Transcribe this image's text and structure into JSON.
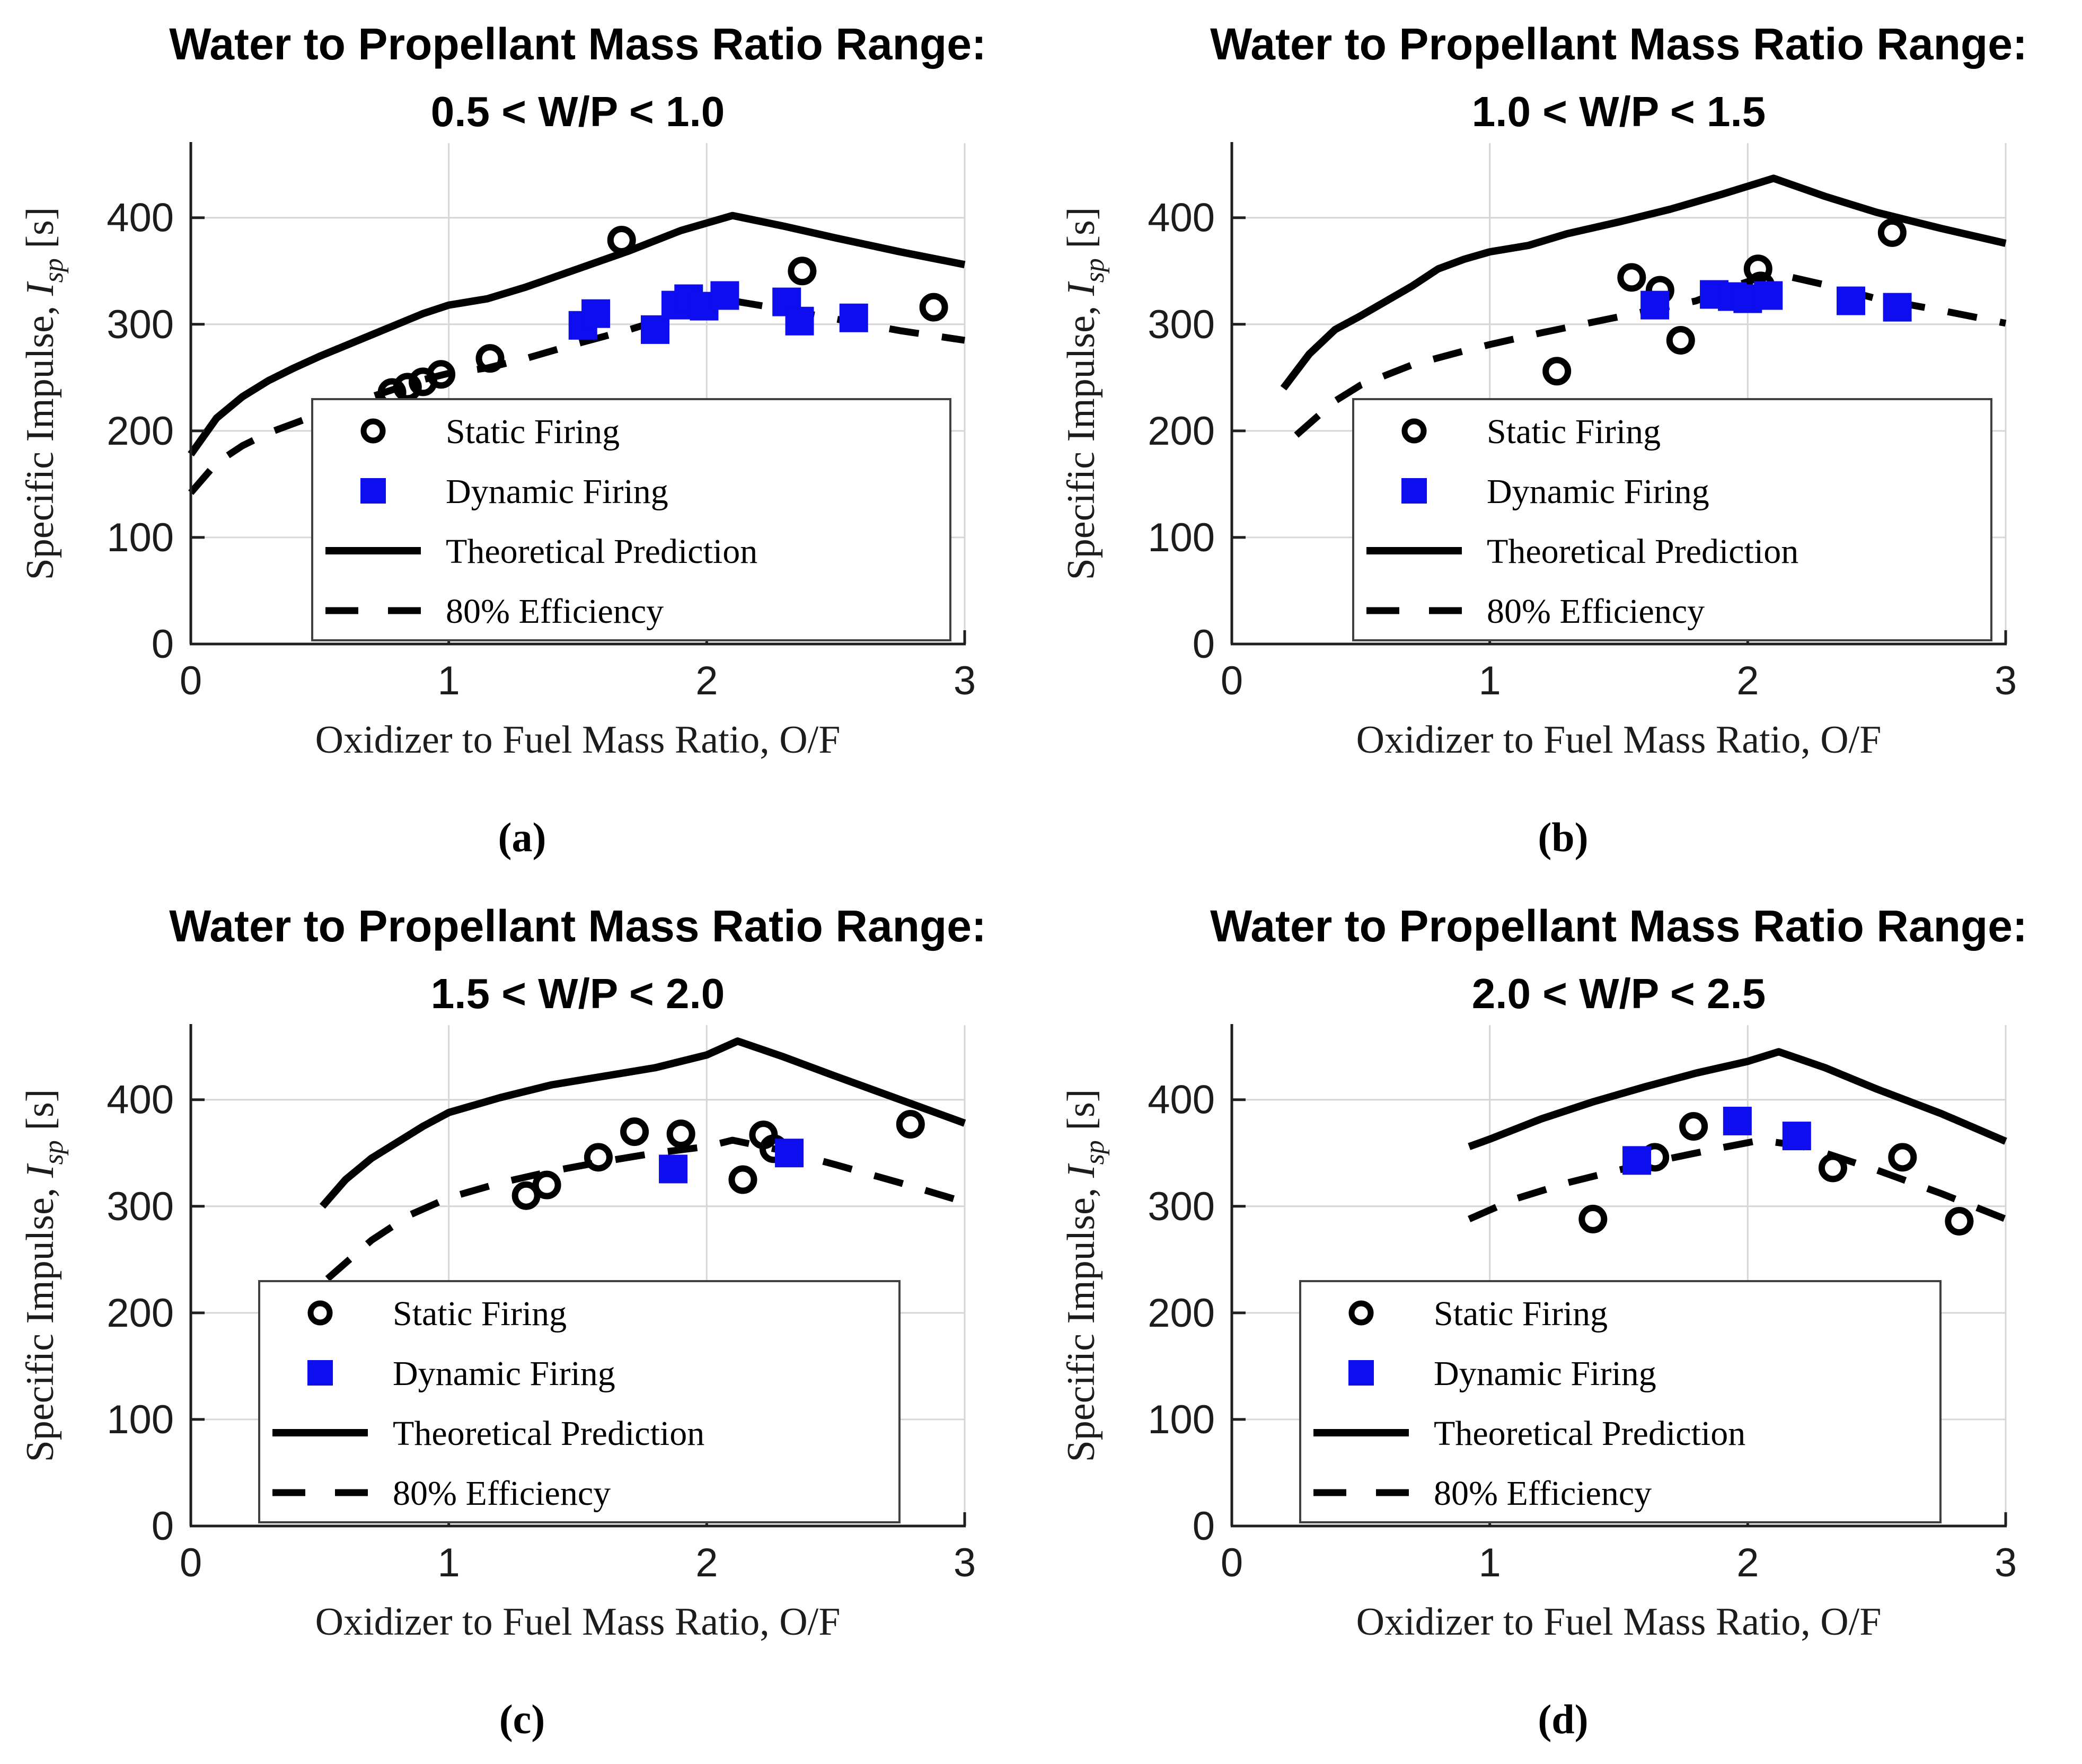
{
  "style": {
    "background": "#ffffff",
    "dynamic_blue": "#0d0df0",
    "series_black": "#000000",
    "grid_color": "#d6d6d6",
    "axis_color": "#1f1f1f",
    "tick_text_color": "#1c1c1c",
    "title_color": "#000000",
    "legend_border": "#404040",
    "legend_fill": "#ffffff"
  },
  "ylabel_parts": {
    "pre": "Specific Impulse, ",
    "symbol": "I",
    "subscript": "sp",
    "post": " [s]"
  },
  "legend": {
    "items": [
      {
        "label": "Static Firing",
        "marker": "open-circle"
      },
      {
        "label": "Dynamic Firing",
        "marker": "filled-square"
      },
      {
        "label": "Theoretical Prediction",
        "marker": "solid-line"
      },
      {
        "label": "80% Efficiency",
        "marker": "dashed-line"
      }
    ]
  },
  "chart_data": [
    {
      "id": "a",
      "type": "line",
      "title": "Water to Propellant Mass Ratio Range:",
      "subtitle": "0.5 < W/P < 1.0",
      "caption": "(a)",
      "xlabel": "Oxidizer to Fuel Mass Ratio, O/F",
      "ylabel": "Specific Impulse, Isp [s]",
      "xlim": [
        0,
        3
      ],
      "ylim": [
        0,
        470
      ],
      "xticks": [
        0,
        1,
        2,
        3
      ],
      "yticks": [
        0,
        100,
        200,
        300,
        400
      ],
      "grid": true,
      "legend_position": "inside-lower-right",
      "series": [
        {
          "name": "Static Firing",
          "kind": "scatter",
          "marker": "open-circle",
          "color": "#000000",
          "points": [
            [
              0.78,
              236
            ],
            [
              0.84,
              241
            ],
            [
              0.9,
              246
            ],
            [
              0.97,
              253
            ],
            [
              1.16,
              268
            ],
            [
              1.67,
              379
            ],
            [
              2.37,
              350
            ],
            [
              2.88,
              316
            ]
          ]
        },
        {
          "name": "Dynamic Firing",
          "kind": "scatter",
          "marker": "filled-square",
          "color": "#0d0df0",
          "points": [
            [
              1.52,
              299
            ],
            [
              1.57,
              310
            ],
            [
              1.8,
              295
            ],
            [
              1.88,
              318
            ],
            [
              1.93,
              324
            ],
            [
              1.99,
              317
            ],
            [
              2.07,
              327
            ],
            [
              2.31,
              321
            ],
            [
              2.36,
              303
            ],
            [
              2.57,
              306
            ]
          ]
        },
        {
          "name": "Theoretical Prediction",
          "kind": "line",
          "line_style": "solid",
          "color": "#000000",
          "points": [
            [
              0,
              178
            ],
            [
              0.1,
              212
            ],
            [
              0.2,
              232
            ],
            [
              0.3,
              247
            ],
            [
              0.4,
              259
            ],
            [
              0.5,
              270
            ],
            [
              0.6,
              280
            ],
            [
              0.7,
              290
            ],
            [
              0.8,
              300
            ],
            [
              0.9,
              310
            ],
            [
              1.0,
              318
            ],
            [
              1.15,
              324
            ],
            [
              1.3,
              335
            ],
            [
              1.5,
              352
            ],
            [
              1.7,
              369
            ],
            [
              1.9,
              388
            ],
            [
              2.1,
              402
            ],
            [
              2.3,
              392
            ],
            [
              2.5,
              381
            ],
            [
              2.75,
              368
            ],
            [
              3.0,
              356
            ]
          ]
        },
        {
          "name": "80% Efficiency",
          "kind": "line",
          "line_style": "dashed",
          "color": "#000000",
          "points": [
            [
              0,
              142
            ],
            [
              0.1,
              170
            ],
            [
              0.2,
              186
            ],
            [
              0.3,
              198
            ],
            [
              0.4,
              207
            ],
            [
              0.5,
              216
            ],
            [
              0.6,
              224
            ],
            [
              0.7,
              232
            ],
            [
              0.8,
              240
            ],
            [
              0.9,
              248
            ],
            [
              1.0,
              254
            ],
            [
              1.15,
              259
            ],
            [
              1.3,
              268
            ],
            [
              1.5,
              282
            ],
            [
              1.7,
              295
            ],
            [
              1.9,
              310
            ],
            [
              2.1,
              322
            ],
            [
              2.3,
              314
            ],
            [
              2.5,
              305
            ],
            [
              2.75,
              294
            ],
            [
              3.0,
              285
            ]
          ]
        }
      ]
    },
    {
      "id": "b",
      "type": "line",
      "title": "Water to Propellant Mass Ratio Range:",
      "subtitle": "1.0 < W/P < 1.5",
      "caption": "(b)",
      "xlabel": "Oxidizer to Fuel Mass Ratio, O/F",
      "ylabel": "Specific Impulse, Isp [s]",
      "xlim": [
        0,
        3
      ],
      "ylim": [
        0,
        470
      ],
      "xticks": [
        0,
        1,
        2,
        3
      ],
      "yticks": [
        0,
        100,
        200,
        300,
        400
      ],
      "grid": true,
      "legend_position": "inside-lower-right",
      "series": [
        {
          "name": "Static Firing",
          "kind": "scatter",
          "marker": "open-circle",
          "color": "#000000",
          "points": [
            [
              1.26,
              256
            ],
            [
              1.55,
              344
            ],
            [
              1.66,
              332
            ],
            [
              1.74,
              285
            ],
            [
              2.04,
              352
            ],
            [
              2.05,
              336
            ],
            [
              2.56,
              386
            ]
          ]
        },
        {
          "name": "Dynamic Firing",
          "kind": "scatter",
          "marker": "filled-square",
          "color": "#0d0df0",
          "points": [
            [
              1.64,
              318
            ],
            [
              1.87,
              328
            ],
            [
              1.94,
              326
            ],
            [
              2.0,
              324
            ],
            [
              2.08,
              327
            ],
            [
              2.4,
              322
            ],
            [
              2.58,
              316
            ]
          ]
        },
        {
          "name": "Theoretical Prediction",
          "kind": "line",
          "line_style": "solid",
          "color": "#000000",
          "points": [
            [
              0.2,
              240
            ],
            [
              0.3,
              272
            ],
            [
              0.4,
              295
            ],
            [
              0.5,
              308
            ],
            [
              0.6,
              322
            ],
            [
              0.7,
              336
            ],
            [
              0.8,
              352
            ],
            [
              0.9,
              361
            ],
            [
              1.0,
              368
            ],
            [
              1.15,
              374
            ],
            [
              1.3,
              385
            ],
            [
              1.5,
              396
            ],
            [
              1.7,
              408
            ],
            [
              1.9,
              422
            ],
            [
              2.1,
              437
            ],
            [
              2.3,
              420
            ],
            [
              2.5,
              405
            ],
            [
              2.75,
              390
            ],
            [
              3.0,
              376
            ]
          ]
        },
        {
          "name": "80% Efficiency",
          "kind": "line",
          "line_style": "dashed",
          "color": "#000000",
          "points": [
            [
              0.25,
              196
            ],
            [
              0.4,
              228
            ],
            [
              0.5,
              243
            ],
            [
              0.7,
              262
            ],
            [
              0.9,
              275
            ],
            [
              1.0,
              281
            ],
            [
              1.2,
              292
            ],
            [
              1.4,
              302
            ],
            [
              1.6,
              312
            ],
            [
              1.8,
              322
            ],
            [
              1.95,
              336
            ],
            [
              2.1,
              348
            ],
            [
              2.3,
              337
            ],
            [
              2.5,
              324
            ],
            [
              2.75,
              313
            ],
            [
              3.0,
              301
            ]
          ]
        }
      ]
    },
    {
      "id": "c",
      "type": "line",
      "title": "Water to Propellant Mass Ratio Range:",
      "subtitle": "1.5 < W/P < 2.0",
      "caption": "(c)",
      "xlabel": "Oxidizer to Fuel Mass Ratio, O/F",
      "ylabel": "Specific Impulse, Isp [s]",
      "xlim": [
        0,
        3
      ],
      "ylim": [
        0,
        470
      ],
      "xticks": [
        0,
        1,
        2,
        3
      ],
      "yticks": [
        0,
        100,
        200,
        300,
        400
      ],
      "grid": true,
      "legend_position": "inside-lower-right",
      "series": [
        {
          "name": "Static Firing",
          "kind": "scatter",
          "marker": "open-circle",
          "color": "#000000",
          "points": [
            [
              1.3,
              310
            ],
            [
              1.38,
              320
            ],
            [
              1.58,
              346
            ],
            [
              1.72,
              370
            ],
            [
              1.9,
              368
            ],
            [
              2.14,
              325
            ],
            [
              2.22,
              367
            ],
            [
              2.26,
              354
            ],
            [
              2.79,
              377
            ]
          ]
        },
        {
          "name": "Dynamic Firing",
          "kind": "scatter",
          "marker": "filled-square",
          "color": "#0d0df0",
          "points": [
            [
              1.87,
              335
            ],
            [
              2.32,
              350
            ]
          ]
        },
        {
          "name": "Theoretical Prediction",
          "kind": "line",
          "line_style": "solid",
          "color": "#000000",
          "points": [
            [
              0.51,
              300
            ],
            [
              0.6,
              325
            ],
            [
              0.7,
              345
            ],
            [
              0.8,
              360
            ],
            [
              0.9,
              375
            ],
            [
              1.0,
              388
            ],
            [
              1.2,
              402
            ],
            [
              1.4,
              414
            ],
            [
              1.6,
              422
            ],
            [
              1.8,
              430
            ],
            [
              2.0,
              442
            ],
            [
              2.12,
              455
            ],
            [
              2.3,
              440
            ],
            [
              2.5,
              422
            ],
            [
              2.75,
              400
            ],
            [
              3.0,
              378
            ]
          ]
        },
        {
          "name": "80% Efficiency",
          "kind": "line",
          "line_style": "dashed",
          "color": "#000000",
          "points": [
            [
              0.53,
              232
            ],
            [
              0.7,
              268
            ],
            [
              0.85,
              292
            ],
            [
              1.0,
              308
            ],
            [
              1.2,
              322
            ],
            [
              1.4,
              333
            ],
            [
              1.6,
              342
            ],
            [
              1.8,
              350
            ],
            [
              2.0,
              356
            ],
            [
              2.1,
              362
            ],
            [
              2.3,
              352
            ],
            [
              2.5,
              339
            ],
            [
              2.75,
              322
            ],
            [
              3.0,
              304
            ]
          ]
        }
      ]
    },
    {
      "id": "d",
      "type": "line",
      "title": "Water to Propellant Mass Ratio Range:",
      "subtitle": "2.0 < W/P < 2.5",
      "caption": "(d)",
      "xlabel": "Oxidizer to Fuel Mass Ratio, O/F",
      "ylabel": "Specific Impulse, Isp [s]",
      "xlim": [
        0,
        3
      ],
      "ylim": [
        0,
        470
      ],
      "xticks": [
        0,
        1,
        2,
        3
      ],
      "yticks": [
        0,
        100,
        200,
        300,
        400
      ],
      "grid": true,
      "legend_position": "inside-lower-right",
      "series": [
        {
          "name": "Static Firing",
          "kind": "scatter",
          "marker": "open-circle",
          "color": "#000000",
          "points": [
            [
              1.4,
              288
            ],
            [
              1.64,
              346
            ],
            [
              1.79,
              375
            ],
            [
              2.33,
              336
            ],
            [
              2.6,
              346
            ],
            [
              2.82,
              286
            ]
          ]
        },
        {
          "name": "Dynamic Firing",
          "kind": "scatter",
          "marker": "filled-square",
          "color": "#0d0df0",
          "points": [
            [
              1.57,
              343
            ],
            [
              1.96,
              380
            ],
            [
              2.19,
              366
            ]
          ]
        },
        {
          "name": "Theoretical Prediction",
          "kind": "line",
          "line_style": "solid",
          "color": "#000000",
          "points": [
            [
              0.92,
              356
            ],
            [
              1.0,
              363
            ],
            [
              1.2,
              382
            ],
            [
              1.4,
              398
            ],
            [
              1.6,
              412
            ],
            [
              1.8,
              425
            ],
            [
              2.0,
              436
            ],
            [
              2.12,
              445
            ],
            [
              2.3,
              430
            ],
            [
              2.5,
              410
            ],
            [
              2.75,
              387
            ],
            [
              3.0,
              361
            ]
          ]
        },
        {
          "name": "80% Efficiency",
          "kind": "line",
          "line_style": "dashed",
          "color": "#000000",
          "points": [
            [
              0.92,
              288
            ],
            [
              1.1,
              307
            ],
            [
              1.3,
              322
            ],
            [
              1.5,
              334
            ],
            [
              1.7,
              345
            ],
            [
              1.9,
              355
            ],
            [
              2.05,
              362
            ],
            [
              2.2,
              357
            ],
            [
              2.3,
              350
            ],
            [
              2.5,
              334
            ],
            [
              2.75,
              312
            ],
            [
              3.0,
              288
            ]
          ]
        }
      ]
    }
  ]
}
